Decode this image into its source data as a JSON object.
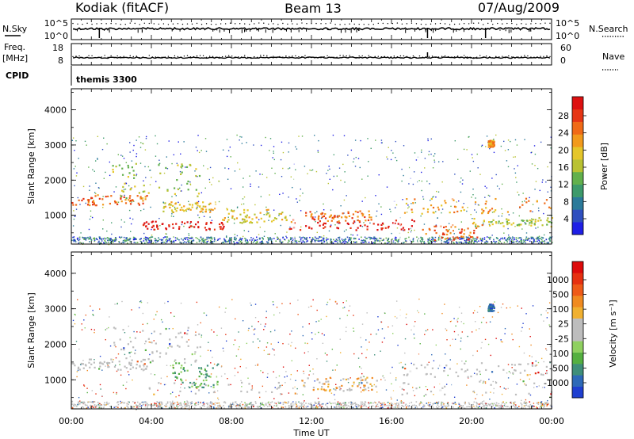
{
  "header": {
    "station": "Kodiak (fitACF)",
    "beam": "Beam 13",
    "date": "07/Aug/2009"
  },
  "noise_panel": {
    "left_label": "N.Sky",
    "right_label": "N.Search",
    "left_ticks": [
      "10^5",
      "10^0"
    ],
    "right_ticks": [
      "10^5",
      "10^0"
    ]
  },
  "freq_panel": {
    "left_label_1": "Freq.",
    "left_label_2": "[MHz]",
    "right_label": "Nave",
    "left_ticks": [
      "18",
      "8"
    ],
    "right_ticks": [
      "60",
      "0"
    ]
  },
  "cpid": {
    "label": "CPID",
    "mode": "themis 3300"
  },
  "chart_data": [
    {
      "type": "heatmap",
      "name": "power",
      "ylabel": "Slant Range [km]",
      "ylim": [
        180,
        4600
      ],
      "yticks": [
        "1000",
        "2000",
        "3000",
        "4000"
      ],
      "xlim_hours": [
        0,
        24
      ],
      "colorbar": {
        "label": "Power [dB]",
        "ticks": [
          "4",
          "8",
          "12",
          "16",
          "20",
          "24",
          "28"
        ],
        "colors": [
          "#1f1fe6",
          "#2f4fbf",
          "#2b7a9a",
          "#3d9a6b",
          "#62b04c",
          "#b9c232",
          "#e5c62a",
          "#f29a1c",
          "#f06a17",
          "#e63514",
          "#dd1010"
        ]
      },
      "features": [
        {
          "t0": 0.0,
          "t1": 3.8,
          "r0": 1300,
          "r1": 1600,
          "level": 8
        },
        {
          "t0": 2.0,
          "t1": 6.5,
          "r0": 1500,
          "r1": 2500,
          "level": 5
        },
        {
          "t0": 3.5,
          "t1": 7.6,
          "r0": 600,
          "r1": 850,
          "level": 10
        },
        {
          "t0": 4.5,
          "t1": 7.2,
          "r0": 1100,
          "r1": 1400,
          "level": 6
        },
        {
          "t0": 7.5,
          "t1": 11.0,
          "r0": 800,
          "r1": 1200,
          "level": 6
        },
        {
          "t0": 10.8,
          "t1": 17.5,
          "r0": 600,
          "r1": 900,
          "level": 10
        },
        {
          "t0": 11.5,
          "t1": 15.0,
          "r0": 850,
          "r1": 1150,
          "level": 8
        },
        {
          "t0": 16.5,
          "t1": 24.0,
          "r0": 1050,
          "r1": 1500,
          "level": 7
        },
        {
          "t0": 17.5,
          "t1": 20.5,
          "r0": 300,
          "r1": 800,
          "level": 8
        },
        {
          "t0": 20.0,
          "t1": 24.0,
          "r0": 700,
          "r1": 950,
          "level": 5
        },
        {
          "t0": 20.8,
          "t1": 21.1,
          "r0": 2950,
          "r1": 3150,
          "level": 7
        }
      ]
    },
    {
      "type": "heatmap",
      "name": "velocity",
      "ylabel": "Slant Range [km]",
      "ylim": [
        180,
        4600
      ],
      "yticks": [
        "1000",
        "2000",
        "3000",
        "4000"
      ],
      "xlim_hours": [
        0,
        24
      ],
      "colorbar": {
        "label": "Velocity [m s⁻¹]",
        "ticks": [
          "1000",
          "500",
          "100",
          "25",
          "-25",
          "-100",
          "-500",
          "-1000"
        ],
        "colors": [
          "#1f3fd0",
          "#2e6ab8",
          "#3f8f7a",
          "#55b041",
          "#8fd060",
          "#bdbdbd",
          "#bdbdbd",
          "#f0b030",
          "#f08a20",
          "#ee5a18",
          "#e63010",
          "#dd0a0a"
        ]
      },
      "features": [
        {
          "t0": 0.0,
          "t1": 4.0,
          "r0": 1300,
          "r1": 1600,
          "level": 5
        },
        {
          "t0": 2.0,
          "t1": 6.5,
          "r0": 1500,
          "r1": 2500,
          "level": 5
        },
        {
          "t0": 3.5,
          "t1": 24.0,
          "r0": 600,
          "r1": 1000,
          "level": 5
        },
        {
          "t0": 5.0,
          "t1": 7.3,
          "r0": 800,
          "r1": 1500,
          "level": 3
        },
        {
          "t0": 11.5,
          "t1": 15.0,
          "r0": 700,
          "r1": 1100,
          "level": 7
        },
        {
          "t0": 16.5,
          "t1": 24.0,
          "r0": 1100,
          "r1": 1500,
          "level": 6
        },
        {
          "t0": 20.8,
          "t1": 21.1,
          "r0": 2950,
          "r1": 3150,
          "level": 1
        }
      ]
    }
  ],
  "time_axis": {
    "label": "Time UT",
    "ticks": [
      "00:00",
      "04:00",
      "08:00",
      "12:00",
      "16:00",
      "20:00",
      "00:00"
    ]
  }
}
